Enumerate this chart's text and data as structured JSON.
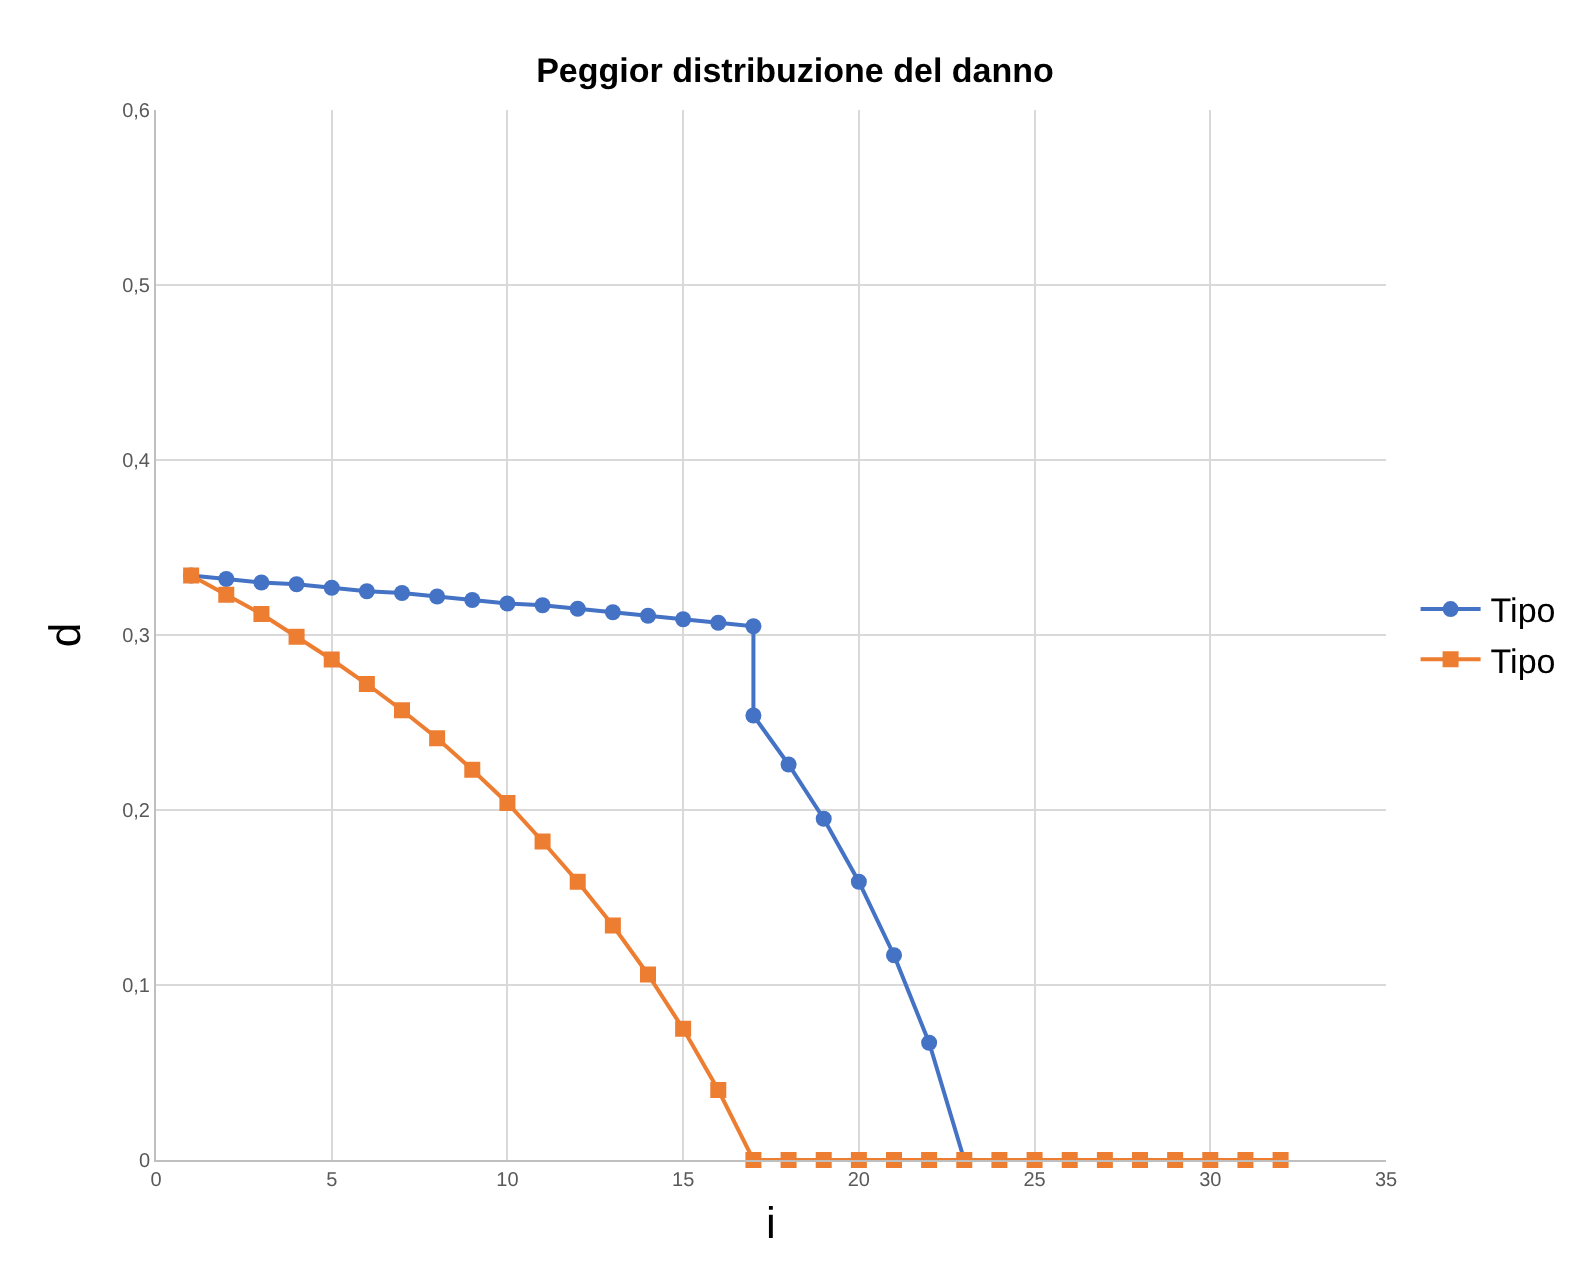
{
  "chart_data": {
    "type": "line",
    "title": "Peggior distribuzione del danno",
    "xlabel": "i",
    "ylabel": "d",
    "series": [
      {
        "name": "Tipo",
        "color": "#4472c4",
        "marker": "circle",
        "x": [
          1,
          2,
          3,
          4,
          5,
          6,
          7,
          8,
          9,
          10,
          11,
          12,
          13,
          14,
          15,
          16,
          17,
          17,
          18,
          19,
          20,
          21,
          22,
          23
        ],
        "values": [
          0.334,
          0.332,
          0.33,
          0.329,
          0.327,
          0.325,
          0.324,
          0.322,
          0.32,
          0.318,
          0.317,
          0.315,
          0.313,
          0.311,
          0.309,
          0.307,
          0.305,
          0.254,
          0.226,
          0.195,
          0.159,
          0.117,
          0.067,
          0
        ]
      },
      {
        "name": "Tipo",
        "color": "#ed7d31",
        "marker": "square",
        "x": [
          1,
          2,
          3,
          4,
          5,
          6,
          7,
          8,
          9,
          10,
          11,
          12,
          13,
          14,
          15,
          16,
          17,
          18,
          19,
          20,
          21,
          22,
          23,
          24,
          25,
          26,
          27,
          28,
          29,
          30,
          31,
          32
        ],
        "values": [
          0.334,
          0.323,
          0.312,
          0.299,
          0.286,
          0.272,
          0.257,
          0.241,
          0.223,
          0.204,
          0.182,
          0.159,
          0.134,
          0.106,
          0.075,
          0.04,
          0,
          0,
          0,
          0,
          0,
          0,
          0,
          0,
          0,
          0,
          0,
          0,
          0,
          0,
          0,
          0
        ]
      }
    ],
    "xlim": [
      0,
      35
    ],
    "xticks": [
      0,
      5,
      10,
      15,
      20,
      25,
      30,
      35
    ],
    "ylim": [
      0,
      0.6
    ],
    "yticks": [
      0,
      {
        "value": 0.1,
        "label": "0,1"
      },
      {
        "value": 0.2,
        "label": "0,2"
      },
      {
        "value": 0.3,
        "label": "0,3"
      },
      {
        "value": 0.4,
        "label": "0,4"
      },
      {
        "value": 0.5,
        "label": "0,5"
      },
      {
        "value": 0.6,
        "label": "0,6"
      }
    ],
    "grid": true,
    "legend": "right",
    "line_style": "solid"
  }
}
